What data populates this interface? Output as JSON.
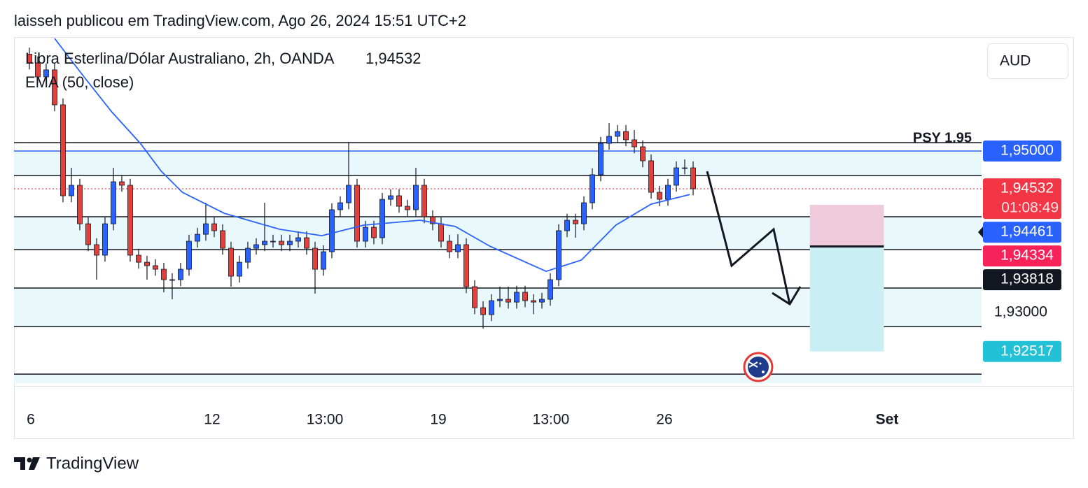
{
  "header": {
    "text": "laisseh publicou em TradingView.com, Ago 26, 2024 15:51 UTC+2"
  },
  "chart_data": {
    "type": "candlestick",
    "title": "Libra Esterlina/Dólar Australiano, 2h, OANDA",
    "last_price": {
      "value": 1.94532,
      "label": "1,94532"
    },
    "currency": "AUD",
    "up_color": "#2962ff",
    "down_color": "#e0413d",
    "wick_color": "#131722",
    "open": [
      1.962,
      1.96091,
      1.95918,
      1.96005,
      1.95572,
      1.94446,
      1.94576,
      1.94099,
      1.9384,
      1.9371,
      1.94099,
      1.94619,
      1.94576,
      1.9371,
      1.93623,
      1.9358,
      1.93536,
      1.93407,
      1.93407,
      1.93536,
      1.93883,
      1.93969,
      1.94099,
      1.94013,
      1.93796,
      1.9345,
      1.93623,
      1.93796,
      1.9384,
      1.93883,
      1.93883,
      1.9384,
      1.93883,
      1.93926,
      1.93796,
      1.93536,
      1.93753,
      1.94273,
      1.94359,
      1.94576,
      1.93883,
      1.94056,
      1.93926,
      1.94402,
      1.94446,
      1.94316,
      1.94273,
      1.94576,
      1.94186,
      1.94099,
      1.93883,
      1.93753,
      1.9384,
      1.9332,
      1.9306,
      1.92974,
      1.93147,
      1.93164,
      1.93129,
      1.93251,
      1.93147,
      1.93129,
      1.93164,
      1.93407,
      1.94013,
      1.94143,
      1.94099,
      1.94359,
      1.94706,
      1.95095,
      1.95182,
      1.95242,
      1.95139,
      1.95052,
      1.94879,
      1.94489,
      1.94402,
      1.94576,
      1.94792,
      1.94792
    ],
    "high": [
      1.9628,
      1.96171,
      1.96085,
      1.96085,
      1.95652,
      1.94792,
      1.94656,
      1.94179,
      1.9392,
      1.94179,
      1.94792,
      1.94699,
      1.94656,
      1.9379,
      1.93703,
      1.9366,
      1.93616,
      1.93487,
      1.93616,
      1.93963,
      1.94049,
      1.94359,
      1.94179,
      1.94093,
      1.93876,
      1.93703,
      1.93876,
      1.9392,
      1.94359,
      1.93963,
      1.93963,
      1.93963,
      1.94006,
      1.94006,
      1.93876,
      1.93833,
      1.94353,
      1.94439,
      1.95113,
      1.94656,
      1.94136,
      1.94136,
      1.94482,
      1.94526,
      1.94526,
      1.94396,
      1.94792,
      1.94656,
      1.94266,
      1.94179,
      1.93963,
      1.93969,
      1.9392,
      1.934,
      1.9314,
      1.93227,
      1.9332,
      1.9332,
      1.93331,
      1.93331,
      1.93227,
      1.93244,
      1.93487,
      1.94093,
      1.94223,
      1.94223,
      1.94439,
      1.94786,
      1.95175,
      1.95346,
      1.95322,
      1.95322,
      1.9526,
      1.95132,
      1.94959,
      1.94569,
      1.94656,
      1.94872,
      1.94896,
      1.94872
    ],
    "low": [
      1.96011,
      1.95838,
      1.95838,
      1.95492,
      1.94366,
      1.94366,
      1.94019,
      1.9376,
      1.93407,
      1.9363,
      1.94019,
      1.94496,
      1.9363,
      1.93543,
      1.93407,
      1.93456,
      1.9325,
      1.93164,
      1.93327,
      1.93456,
      1.93803,
      1.93889,
      1.93933,
      1.93716,
      1.9332,
      1.9337,
      1.93543,
      1.93716,
      1.9376,
      1.93803,
      1.9376,
      1.9376,
      1.93803,
      1.93716,
      1.93234,
      1.93456,
      1.93673,
      1.94193,
      1.94279,
      1.93803,
      1.93803,
      1.93846,
      1.93846,
      1.94322,
      1.94236,
      1.94193,
      1.94193,
      1.94106,
      1.94019,
      1.93803,
      1.93673,
      1.93673,
      1.9324,
      1.9298,
      1.928,
      1.92894,
      1.93067,
      1.93049,
      1.93049,
      1.93067,
      1.9298,
      1.93049,
      1.93084,
      1.93327,
      1.93933,
      1.93926,
      1.94019,
      1.94279,
      1.94626,
      1.95015,
      1.95102,
      1.95059,
      1.94972,
      1.94799,
      1.94409,
      1.94316,
      1.94322,
      1.94496,
      1.94712,
      1.94452
    ],
    "close": [
      1.96091,
      1.95918,
      1.96005,
      1.95572,
      1.94446,
      1.94576,
      1.94099,
      1.9384,
      1.9371,
      1.94099,
      1.94619,
      1.94576,
      1.9371,
      1.93623,
      1.9358,
      1.93536,
      1.93407,
      1.93407,
      1.93536,
      1.93883,
      1.93969,
      1.94099,
      1.94013,
      1.93796,
      1.9345,
      1.93623,
      1.93796,
      1.9384,
      1.93883,
      1.93883,
      1.9384,
      1.93883,
      1.93926,
      1.93796,
      1.93536,
      1.93753,
      1.94273,
      1.94359,
      1.94576,
      1.93883,
      1.94056,
      1.93926,
      1.94402,
      1.94446,
      1.94316,
      1.94273,
      1.94576,
      1.94186,
      1.94099,
      1.93883,
      1.93753,
      1.9384,
      1.9332,
      1.9306,
      1.92974,
      1.93147,
      1.93164,
      1.93129,
      1.93251,
      1.93147,
      1.93129,
      1.93164,
      1.93407,
      1.94013,
      1.94143,
      1.94099,
      1.94359,
      1.94706,
      1.95095,
      1.95182,
      1.95242,
      1.95139,
      1.95052,
      1.94879,
      1.94489,
      1.94402,
      1.94576,
      1.94792,
      1.94792,
      1.94532
    ],
    "ema": {
      "name": "EMA (50, close)",
      "color": "#2962ff",
      "x": [
        3,
        6.5,
        9.8,
        13.2,
        15.7,
        18.2,
        23.2,
        29.8,
        34.8,
        39.8,
        46.5,
        50.7,
        54.8,
        61.5,
        65.7,
        69.8,
        74,
        78.6
      ],
      "values": [
        1.96394,
        1.95918,
        1.95485,
        1.95095,
        1.94749,
        1.94489,
        1.94229,
        1.9403,
        1.93952,
        1.94082,
        1.94143,
        1.94065,
        1.93822,
        1.9351,
        1.93649,
        1.94082,
        1.94342,
        1.94461
      ]
    },
    "xlim": [
      -1.83,
      113.33
    ],
    "xticks": [
      {
        "value": 0.17,
        "label": "6"
      },
      {
        "value": 21.75,
        "label": "12"
      },
      {
        "value": 35.17,
        "label": "13:00"
      },
      {
        "value": 48.67,
        "label": "19"
      },
      {
        "value": 62.08,
        "label": "13:00"
      },
      {
        "value": 75.58,
        "label": "26"
      },
      {
        "value": 102.08,
        "label": "Set",
        "bold": true
      }
    ],
    "ylim": [
      1.92091,
      1.96394
    ],
    "yticks": [
      {
        "value": 1.93,
        "label": "1,93000"
      }
    ],
    "levels": [
      1.95104,
      1.94697,
      1.94186,
      1.93779,
      1.93303,
      1.92826,
      1.92237
    ],
    "zones": [
      [
        1.95,
        1.94697
      ],
      [
        1.94186,
        1.93779
      ],
      [
        1.93303,
        1.92826
      ],
      [
        1.92237,
        1.92125
      ]
    ],
    "zone_color": "#e9f8fb",
    "psy_line": {
      "value": 1.95,
      "label": "PSY 1.95",
      "color": "#2962ff"
    },
    "position": {
      "x": [
        92.9,
        101.7
      ],
      "stop": 1.94334,
      "entry": 1.93818,
      "target": 1.92517,
      "stop_color": "#efcadb",
      "target_color": "#c9eff5"
    },
    "price_tags": [
      {
        "value": 1.95,
        "label": "1,95000",
        "color": "#2962ff"
      },
      {
        "value": 1.94532,
        "label": "1,94532",
        "color": "#f23645",
        "countdown": "01:08:49"
      },
      {
        "value": 1.94461,
        "label": "1,94461",
        "color": "#2962ff"
      },
      {
        "value": 1.94334,
        "label": "1,94334",
        "color": "#f7225a"
      },
      {
        "value": 1.93818,
        "label": "1,93818",
        "color": "#131722"
      },
      {
        "value": 1.92517,
        "label": "1,92517",
        "color": "#22c1d6"
      }
    ]
  },
  "footer": {
    "brand": "TradingView"
  }
}
